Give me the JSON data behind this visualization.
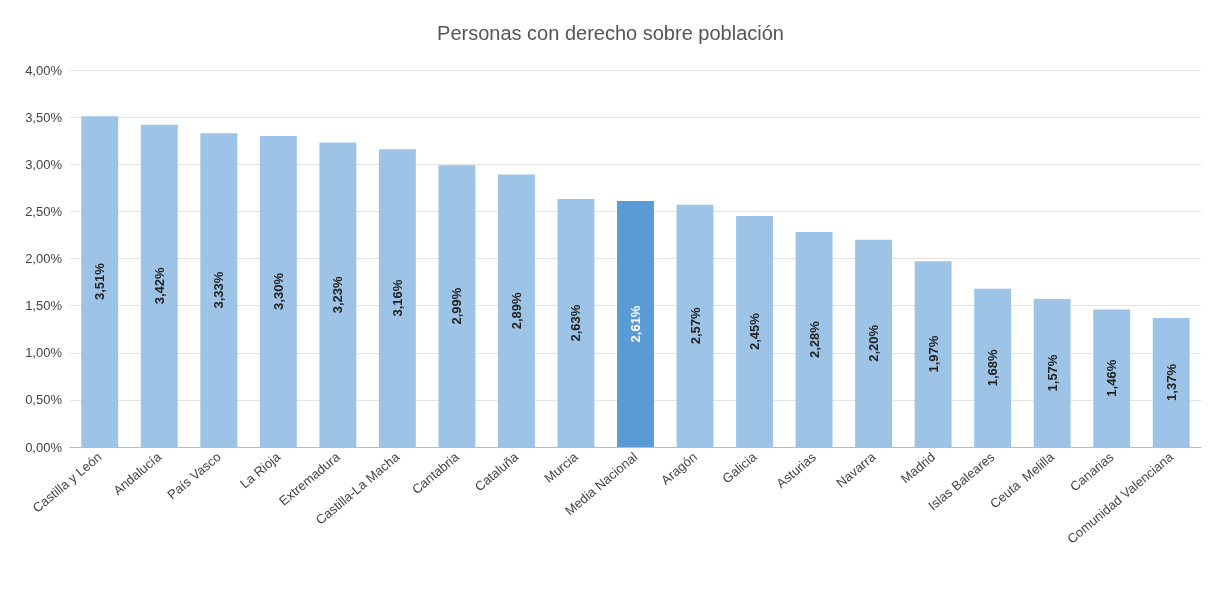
{
  "chart_data": {
    "type": "bar",
    "title": "Personas con derecho sobre población",
    "categories": [
      "Castilla y León",
      "Andalucía",
      "País Vasco",
      "La Rioja",
      "Extremadura",
      "Castilla-La Macha",
      "Cantabria",
      "Cataluña",
      "Murcia",
      "Media Nacional",
      "Aragón",
      "Galicia",
      "Asturias",
      "Navarra",
      "Madrid",
      "Islas Baleares",
      "Ceuta  Melilla",
      "Canarias",
      "Comunidad Valenciana"
    ],
    "values": [
      3.51,
      3.42,
      3.33,
      3.3,
      3.23,
      3.16,
      2.99,
      2.89,
      2.63,
      2.61,
      2.57,
      2.45,
      2.28,
      2.2,
      1.97,
      1.68,
      1.57,
      1.46,
      1.37
    ],
    "value_labels": [
      "3,51%",
      "3,42%",
      "3,33%",
      "3,30%",
      "3,23%",
      "3,16%",
      "2,99%",
      "2,89%",
      "2,63%",
      "2,61%",
      "2,57%",
      "2,45%",
      "2,28%",
      "2,20%",
      "1,97%",
      "1,68%",
      "1,57%",
      "1,46%",
      "1,37%"
    ],
    "colors": [
      "#9dc3e6",
      "#9dc3e6",
      "#9dc3e6",
      "#9dc3e6",
      "#9dc3e6",
      "#9dc3e6",
      "#9dc3e6",
      "#9dc3e6",
      "#9dc3e6",
      "#5b9bd5",
      "#9dc3e6",
      "#9dc3e6",
      "#9dc3e6",
      "#9dc3e6",
      "#9dc3e6",
      "#9dc3e6",
      "#9dc3e6",
      "#9dc3e6",
      "#9dc3e6"
    ],
    "ylim": [
      0,
      4
    ],
    "yticks": [
      {
        "value": 0,
        "label": "0,00%"
      },
      {
        "value": 0.5,
        "label": "0,50%"
      },
      {
        "value": 1,
        "label": "1,00%"
      },
      {
        "value": 1.5,
        "label": "1,50%"
      },
      {
        "value": 2,
        "label": "2,00%"
      },
      {
        "value": 2.5,
        "label": "2,50%"
      },
      {
        "value": 3,
        "label": "3,00%"
      },
      {
        "value": 3.5,
        "label": "3,50%"
      },
      {
        "value": 4,
        "label": "4,00%"
      }
    ],
    "grid": "y"
  }
}
